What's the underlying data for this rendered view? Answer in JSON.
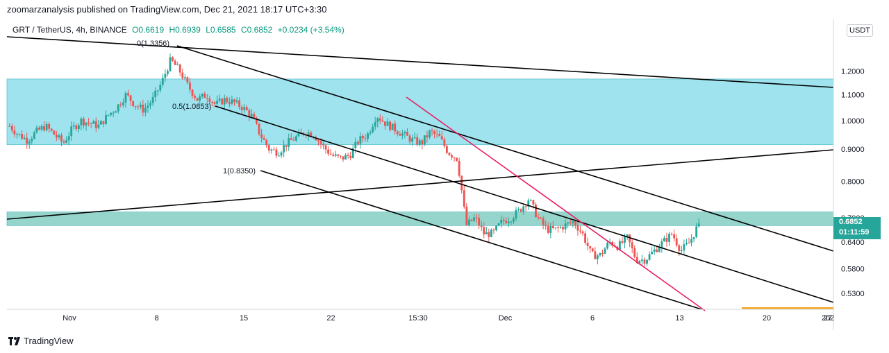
{
  "header": {
    "publisher_line": "zoomarzanalysis published on TradingView.com, Dec 21, 2021 18:17 UTC+3:30"
  },
  "legend": {
    "symbol": "GRT / TetherUS, 4h, BINANCE",
    "open": "O0.6619",
    "high": "H0.6939",
    "low": "L0.6585",
    "close": "C0.6852",
    "change": "+0.0234 (+3.54%)"
  },
  "currency_badge": "USDT",
  "last_price": {
    "value": "0.6852",
    "countdown": "01:11:59"
  },
  "footer": {
    "brand": "TradingView"
  },
  "colors": {
    "up": "#26a69a",
    "down": "#ef5350",
    "zone_upper": "#9ee3ee",
    "zone_lower": "#96d5cc",
    "trend_line": "#000000",
    "pink_line": "#e91e63",
    "accent_box": "#f5a623"
  },
  "chart_data": {
    "type": "candlestick",
    "y_scale": "log",
    "ylim": [
      0.5,
      1.45
    ],
    "x_ticks": [
      "Nov",
      "8",
      "15",
      "22",
      "15:30",
      "Dec",
      "6",
      "13",
      "20",
      "27",
      "202"
    ],
    "y_ticks": [
      "1.2000",
      "1.1000",
      "1.0000",
      "0.9000",
      "0.8000",
      "0.7000",
      "0.6400",
      "0.5800",
      "0.5300"
    ],
    "y_tick_values": [
      1.2,
      1.1,
      1.0,
      0.9,
      0.8,
      0.7,
      0.64,
      0.58,
      0.53
    ],
    "zones": [
      {
        "from": 0.915,
        "to": 1.165
      },
      {
        "from": 0.68,
        "to": 0.715
      }
    ],
    "fib_labels": [
      {
        "text": "0(1.3356)",
        "price": 1.3356
      },
      {
        "text": "0.5(1.0853)",
        "price": 1.0853
      },
      {
        "text": "1(0.8350)",
        "price": 0.835
      }
    ],
    "close_path": [
      0.98,
      0.95,
      0.93,
      0.96,
      0.98,
      0.95,
      0.92,
      0.97,
      1.0,
      0.99,
      0.98,
      1.02,
      1.05,
      1.1,
      1.06,
      1.04,
      1.08,
      1.15,
      1.25,
      1.2,
      1.13,
      1.08,
      1.1,
      1.06,
      1.08,
      1.07,
      1.05,
      1.02,
      0.95,
      0.9,
      0.89,
      0.92,
      0.94,
      0.96,
      0.95,
      0.91,
      0.88,
      0.87,
      0.88,
      0.93,
      0.95,
      1.02,
      0.99,
      0.97,
      0.95,
      0.93,
      0.92,
      0.96,
      0.94,
      0.89,
      0.87,
      0.68,
      0.7,
      0.66,
      0.66,
      0.69,
      0.7,
      0.72,
      0.75,
      0.7,
      0.67,
      0.67,
      0.68,
      0.69,
      0.66,
      0.61,
      0.61,
      0.64,
      0.63,
      0.65,
      0.6,
      0.6,
      0.62,
      0.64,
      0.66,
      0.62,
      0.64,
      0.685
    ],
    "last_close": 0.6852
  }
}
